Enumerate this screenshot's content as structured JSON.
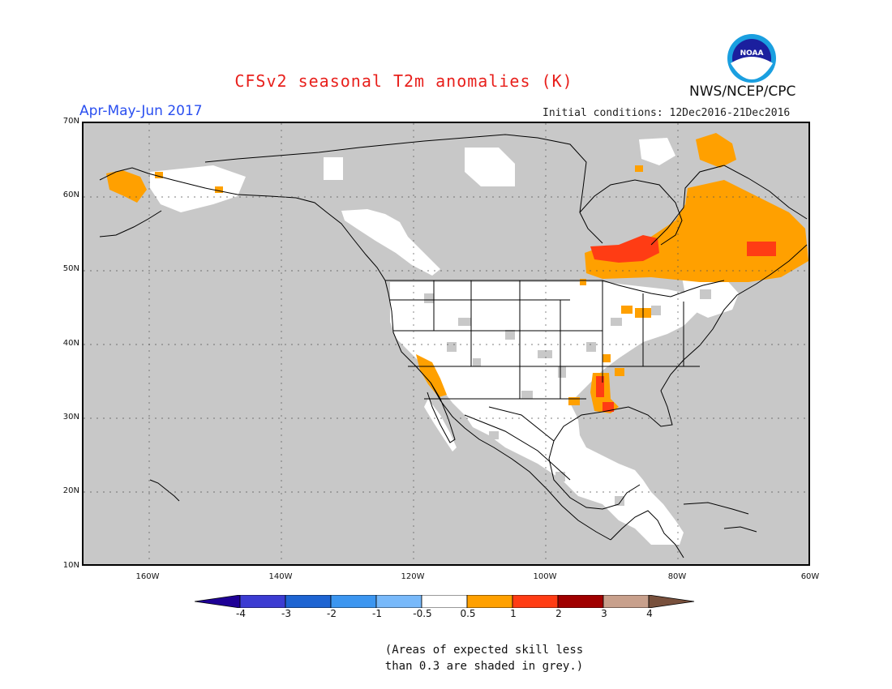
{
  "header": {
    "title": "CFSv2 seasonal T2m anomalies (K)",
    "organization": "NWS/NCEP/CPC",
    "logo_text": "NOAA",
    "period": "Apr-May-Jun 2017",
    "initial_conditions": "Initial conditions: 12Dec2016-21Dec2016"
  },
  "map": {
    "projection": "lat-lon",
    "lon_range": [
      -170,
      -60
    ],
    "lat_range": [
      10,
      70
    ],
    "lat_ticks": [
      "70N",
      "60N",
      "50N",
      "40N",
      "30N",
      "20N",
      "10N"
    ],
    "lon_ticks": [
      "160W",
      "140W",
      "120W",
      "100W",
      "80W",
      "60W"
    ],
    "colors": {
      "low_skill": "#c8c8c8",
      "neutral": "#ffffff",
      "warm_05_1": "#ffa000",
      "warm_1_2": "#ff3c14",
      "boundaries": "#000000"
    }
  },
  "colorbar": {
    "labels": [
      "-4",
      "-3",
      "-2",
      "-1",
      "-0.5",
      "0.5",
      "1",
      "2",
      "3",
      "4"
    ],
    "colors": [
      "#1e0096",
      "#3c3cd2",
      "#1e64d2",
      "#3c96f0",
      "#78b9fa",
      "#ffffff",
      "#ffa000",
      "#ff3c14",
      "#a00000",
      "#c8a08c",
      "#78503c"
    ]
  },
  "note": {
    "line1": "(Areas of expected skill less",
    "line2": "than 0.3 are shaded in grey.)"
  }
}
